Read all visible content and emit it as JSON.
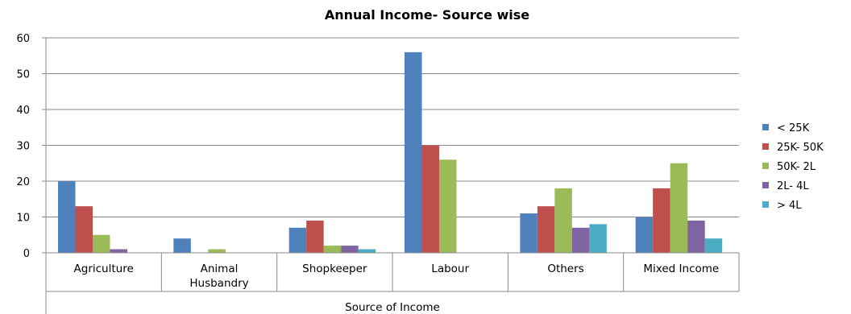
{
  "chart_data": {
    "type": "bar",
    "title": "Annual Income- Source wise",
    "xlabel": "Source of Income",
    "ylabel": "",
    "ylim": [
      0,
      60
    ],
    "yticks": [
      0,
      10,
      20,
      30,
      40,
      50,
      60
    ],
    "grid": true,
    "legend_position": "right",
    "categories": [
      [
        "Agriculture"
      ],
      [
        "Animal",
        "Husbandry"
      ],
      [
        "Shopkeeper"
      ],
      [
        "Labour"
      ],
      [
        "Others"
      ],
      [
        "Mixed Income"
      ]
    ],
    "series": [
      {
        "name": "< 25K",
        "color": "#4F81BD",
        "values": [
          20,
          4,
          7,
          56,
          11,
          10
        ]
      },
      {
        "name": "25K- 50K",
        "color": "#C0504D",
        "values": [
          13,
          0,
          9,
          30,
          13,
          18
        ]
      },
      {
        "name": "50K- 2L",
        "color": "#9BBB59",
        "values": [
          5,
          1,
          2,
          26,
          18,
          25
        ]
      },
      {
        "name": "2L- 4L",
        "color": "#8064A2",
        "values": [
          1,
          0,
          2,
          0,
          7,
          9
        ]
      },
      {
        "name": "> 4L",
        "color": "#4BACC6",
        "values": [
          0,
          0,
          1,
          0,
          8,
          4
        ]
      }
    ]
  }
}
